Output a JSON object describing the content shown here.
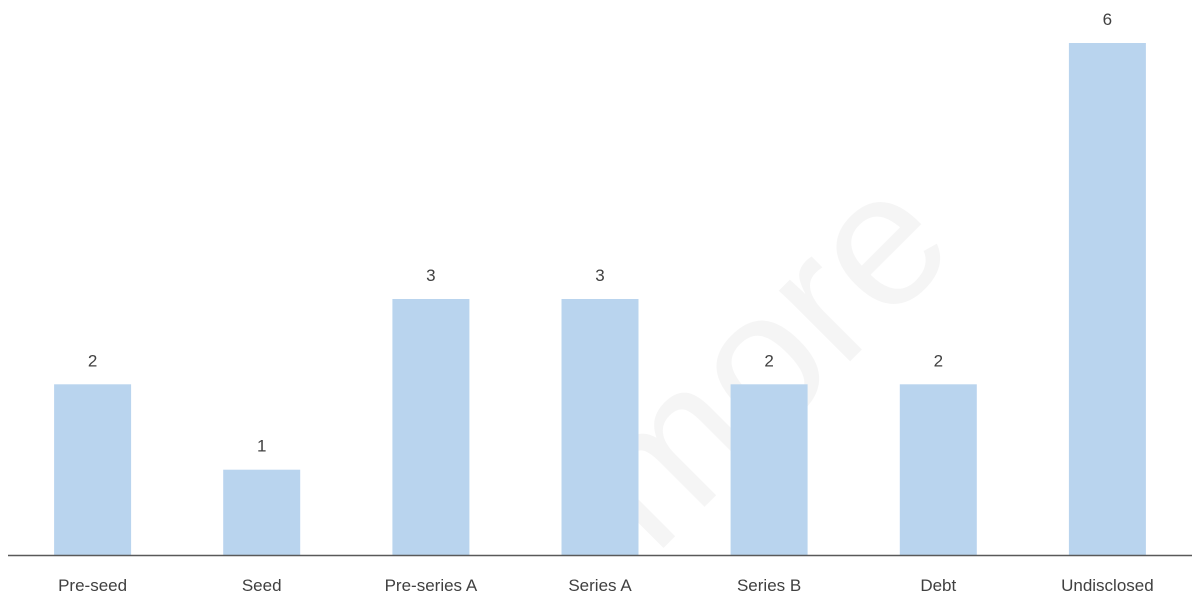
{
  "chart_data": {
    "type": "bar",
    "categories": [
      "Pre-seed",
      "Seed",
      "Pre-series A",
      "Series A",
      "Series B",
      "Debt",
      "Undisclosed"
    ],
    "values": [
      2,
      1,
      3,
      3,
      2,
      2,
      6
    ],
    "title": "",
    "xlabel": "",
    "ylabel": "",
    "ylim": [
      0,
      6
    ],
    "grid": false,
    "legend": "none",
    "data_labels": true
  },
  "colors": {
    "bar": "#b9d4ee",
    "axis": "#595959",
    "text": "#404040"
  },
  "watermark": "more"
}
